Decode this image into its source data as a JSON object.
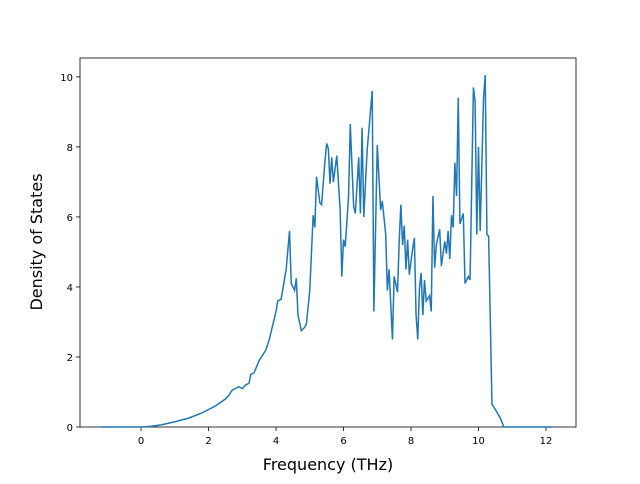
{
  "chart_data": {
    "type": "line",
    "xlabel": "Frequency (THz)",
    "ylabel": "Density of States",
    "xlim": [
      -1.81,
      12.89
    ],
    "ylim": [
      0,
      10.54
    ],
    "xticks": [
      0,
      2,
      4,
      6,
      8,
      10,
      12
    ],
    "yticks": [
      0,
      2,
      4,
      6,
      8,
      10
    ],
    "x": [
      -1.2,
      -0.5,
      0,
      0.3,
      0.6,
      1,
      1.4,
      1.8,
      2.2,
      2.5,
      2.6,
      2.7,
      2.8,
      2.9,
      3.0,
      3.1,
      3.2,
      3.25,
      3.35,
      3.5,
      3.6,
      3.7,
      3.8,
      3.9,
      4.0,
      4.05,
      4.15,
      4.3,
      4.4,
      4.45,
      4.55,
      4.6,
      4.65,
      4.75,
      4.85,
      4.9,
      5.0,
      5.1,
      5.15,
      5.2,
      5.3,
      5.35,
      5.45,
      5.5,
      5.55,
      5.6,
      5.65,
      5.7,
      5.8,
      5.9,
      5.95,
      6.0,
      6.05,
      6.15,
      6.2,
      6.3,
      6.35,
      6.45,
      6.5,
      6.55,
      6.6,
      6.7,
      6.85,
      6.9,
      7.0,
      7.1,
      7.15,
      7.25,
      7.3,
      7.35,
      7.45,
      7.5,
      7.6,
      7.65,
      7.7,
      7.75,
      7.8,
      7.85,
      7.9,
      7.95,
      8.05,
      8.1,
      8.15,
      8.2,
      8.25,
      8.3,
      8.35,
      8.4,
      8.45,
      8.55,
      8.6,
      8.65,
      8.7,
      8.75,
      8.85,
      8.9,
      9.0,
      9.05,
      9.1,
      9.15,
      9.2,
      9.25,
      9.3,
      9.35,
      9.4,
      9.45,
      9.55,
      9.6,
      9.7,
      9.75,
      9.85,
      9.9,
      9.95,
      10.0,
      10.05,
      10.15,
      10.2,
      10.25,
      10.3,
      10.4,
      10.5,
      10.65,
      10.75,
      11,
      12.2
    ],
    "series": [
      {
        "color": "#1f77b4",
        "values": [
          0,
          0,
          0,
          0.02,
          0.06,
          0.15,
          0.25,
          0.4,
          0.6,
          0.8,
          0.9,
          1.05,
          1.1,
          1.15,
          1.1,
          1.2,
          1.25,
          1.5,
          1.55,
          1.9,
          2.05,
          2.2,
          2.5,
          2.9,
          3.3,
          3.6,
          3.65,
          4.5,
          5.6,
          4.1,
          3.9,
          4.25,
          3.2,
          2.75,
          2.85,
          2.95,
          3.9,
          6.05,
          5.7,
          7.15,
          6.4,
          6.35,
          7.6,
          8.1,
          7.95,
          6.95,
          7.7,
          7.0,
          7.75,
          6.2,
          4.3,
          5.35,
          5.15,
          6.6,
          8.65,
          6.3,
          6.1,
          7.7,
          6.1,
          8.55,
          6.0,
          7.9,
          9.6,
          3.3,
          8.05,
          6.2,
          6.45,
          5.5,
          3.9,
          4.5,
          2.5,
          4.3,
          3.85,
          5.3,
          6.35,
          5.2,
          5.75,
          4.5,
          5.35,
          4.35,
          5.1,
          5.4,
          3.2,
          2.5,
          3.95,
          4.4,
          3.2,
          4.2,
          3.6,
          3.75,
          3.3,
          6.6,
          4.55,
          5.2,
          5.65,
          4.6,
          5.3,
          4.95,
          5.6,
          4.8,
          6.05,
          5.7,
          7.55,
          6.6,
          9.4,
          5.8,
          6.1,
          4.1,
          4.3,
          4.2,
          9.7,
          9.3,
          5.5,
          8.0,
          5.6,
          9.4,
          10.05,
          5.5,
          5.45,
          0.65,
          0.5,
          0.25,
          0,
          0,
          0
        ]
      }
    ]
  }
}
